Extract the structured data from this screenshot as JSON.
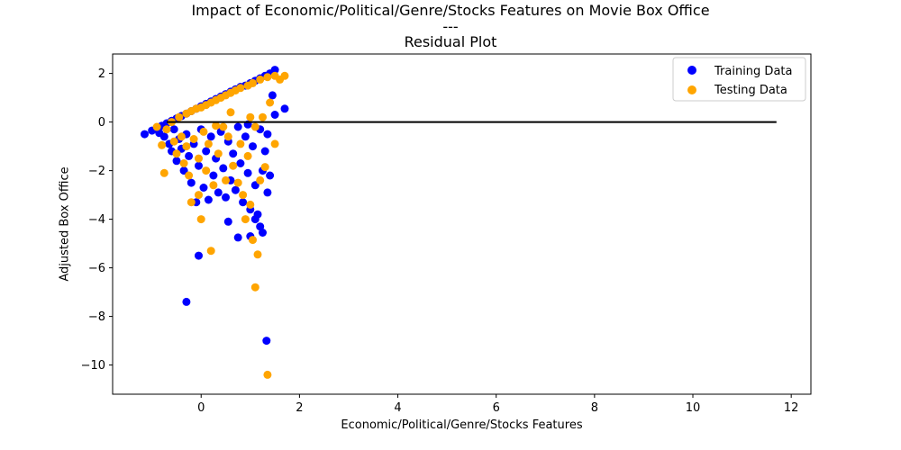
{
  "chart_data": {
    "type": "scatter",
    "title": "Impact of Economic/Political/Genre/Stocks Features on Movie Box Office",
    "title_separator": "---",
    "subtitle": "Residual Plot",
    "xlabel": "Economic/Political/Genre/Stocks Features",
    "ylabel": "Adjusted Box Office",
    "xlim": [
      -1.8,
      12.4
    ],
    "ylim": [
      -11.2,
      2.8
    ],
    "xticks": [
      0,
      2,
      4,
      6,
      8,
      10,
      12
    ],
    "yticks": [
      -10,
      -8,
      -6,
      -4,
      -2,
      0,
      2
    ],
    "xtick_labels": [
      "0",
      "2",
      "4",
      "6",
      "8",
      "10",
      "12"
    ],
    "ytick_labels": [
      "−10",
      "−8",
      "−6",
      "−4",
      "−2",
      "0",
      "2"
    ],
    "grid": false,
    "legend_position": "top-right",
    "hline": {
      "y": 0,
      "xmin": -0.7,
      "xmax": 11.7,
      "color": "#000000"
    },
    "series": [
      {
        "name": "Training Data",
        "color": "#0000ff",
        "points": [
          [
            -1.15,
            -0.5
          ],
          [
            -1.0,
            -0.35
          ],
          [
            -0.9,
            -0.25
          ],
          [
            -0.85,
            -0.45
          ],
          [
            -0.8,
            -0.15
          ],
          [
            -0.75,
            -0.6
          ],
          [
            -0.7,
            -0.05
          ],
          [
            -0.65,
            -0.9
          ],
          [
            -0.6,
            0.05
          ],
          [
            -0.6,
            -1.2
          ],
          [
            -0.55,
            -0.3
          ],
          [
            -0.5,
            0.15
          ],
          [
            -0.5,
            -1.6
          ],
          [
            -0.45,
            -0.7
          ],
          [
            -0.4,
            0.25
          ],
          [
            -0.4,
            -1.1
          ],
          [
            -0.35,
            -2.0
          ],
          [
            -0.3,
            0.35
          ],
          [
            -0.3,
            -0.5
          ],
          [
            -0.25,
            -1.4
          ],
          [
            -0.2,
            0.45
          ],
          [
            -0.2,
            -2.5
          ],
          [
            -0.15,
            -0.9
          ],
          [
            -0.1,
            0.55
          ],
          [
            -0.1,
            -3.3
          ],
          [
            -0.05,
            -1.8
          ],
          [
            0.0,
            0.65
          ],
          [
            0.0,
            -0.3
          ],
          [
            0.05,
            -2.7
          ],
          [
            0.1,
            0.75
          ],
          [
            0.1,
            -1.2
          ],
          [
            0.15,
            -3.2
          ],
          [
            0.2,
            0.85
          ],
          [
            0.2,
            -0.6
          ],
          [
            0.25,
            -2.2
          ],
          [
            0.3,
            0.95
          ],
          [
            0.3,
            -1.5
          ],
          [
            0.35,
            -2.9
          ],
          [
            0.4,
            1.05
          ],
          [
            0.4,
            -0.4
          ],
          [
            0.45,
            -1.9
          ],
          [
            0.5,
            1.15
          ],
          [
            0.5,
            -3.1
          ],
          [
            0.55,
            -0.8
          ],
          [
            0.55,
            -4.1
          ],
          [
            0.6,
            1.25
          ],
          [
            0.6,
            -2.4
          ],
          [
            0.65,
            -1.3
          ],
          [
            0.7,
            1.35
          ],
          [
            0.7,
            -2.8
          ],
          [
            0.75,
            -0.2
          ],
          [
            0.75,
            -4.75
          ],
          [
            0.8,
            1.45
          ],
          [
            0.8,
            -1.7
          ],
          [
            0.85,
            -3.3
          ],
          [
            0.9,
            1.5
          ],
          [
            0.9,
            -0.6
          ],
          [
            0.95,
            -2.1
          ],
          [
            1.0,
            1.6
          ],
          [
            1.0,
            -3.6
          ],
          [
            1.0,
            -4.7
          ],
          [
            1.05,
            -1.0
          ],
          [
            1.1,
            1.7
          ],
          [
            1.1,
            -2.6
          ],
          [
            1.1,
            -4.0
          ],
          [
            1.15,
            -3.8
          ],
          [
            1.2,
            1.8
          ],
          [
            1.2,
            -0.3
          ],
          [
            1.2,
            -4.3
          ],
          [
            1.25,
            -2.0
          ],
          [
            1.25,
            -4.55
          ],
          [
            1.3,
            1.9
          ],
          [
            1.3,
            -1.2
          ],
          [
            1.35,
            -2.9
          ],
          [
            1.35,
            -0.5
          ],
          [
            1.4,
            2.0
          ],
          [
            1.4,
            -2.2
          ],
          [
            1.45,
            1.1
          ],
          [
            1.5,
            2.15
          ],
          [
            1.5,
            0.3
          ],
          [
            1.7,
            0.55
          ],
          [
            -0.3,
            -7.4
          ],
          [
            -0.05,
            -5.5
          ],
          [
            1.33,
            -9.0
          ],
          [
            0.95,
            -0.1
          ]
        ]
      },
      {
        "name": "Testing Data",
        "color": "#ffa500",
        "points": [
          [
            -0.9,
            -0.2
          ],
          [
            -0.8,
            -0.95
          ],
          [
            -0.75,
            -2.1
          ],
          [
            -0.7,
            -0.3
          ],
          [
            -0.6,
            0.0
          ],
          [
            -0.55,
            -0.8
          ],
          [
            -0.5,
            -1.3
          ],
          [
            -0.45,
            0.2
          ],
          [
            -0.4,
            -0.6
          ],
          [
            -0.35,
            -1.7
          ],
          [
            -0.3,
            0.35
          ],
          [
            -0.3,
            -1.0
          ],
          [
            -0.25,
            -2.2
          ],
          [
            -0.2,
            0.45
          ],
          [
            -0.2,
            -3.3
          ],
          [
            -0.15,
            -0.7
          ],
          [
            -0.1,
            0.55
          ],
          [
            -0.05,
            -1.5
          ],
          [
            -0.05,
            -3.0
          ],
          [
            0.0,
            0.6
          ],
          [
            0.0,
            -4.0
          ],
          [
            0.05,
            -0.4
          ],
          [
            0.1,
            0.7
          ],
          [
            0.1,
            -2.0
          ],
          [
            0.15,
            -0.9
          ],
          [
            0.2,
            0.8
          ],
          [
            0.2,
            -5.3
          ],
          [
            0.25,
            -2.6
          ],
          [
            0.3,
            0.9
          ],
          [
            0.35,
            -1.3
          ],
          [
            0.4,
            1.0
          ],
          [
            0.45,
            -0.2
          ],
          [
            0.5,
            1.1
          ],
          [
            0.5,
            -2.4
          ],
          [
            0.55,
            -0.6
          ],
          [
            0.6,
            1.2
          ],
          [
            0.65,
            -1.8
          ],
          [
            0.7,
            1.3
          ],
          [
            0.75,
            -2.5
          ],
          [
            0.8,
            1.4
          ],
          [
            0.8,
            -0.9
          ],
          [
            0.85,
            -3.0
          ],
          [
            0.9,
            -4.0
          ],
          [
            0.95,
            1.5
          ],
          [
            0.95,
            -1.4
          ],
          [
            1.0,
            -3.4
          ],
          [
            1.05,
            1.6
          ],
          [
            1.05,
            -4.85
          ],
          [
            1.1,
            -0.2
          ],
          [
            1.1,
            -6.8
          ],
          [
            1.15,
            -5.45
          ],
          [
            1.2,
            1.75
          ],
          [
            1.2,
            -2.4
          ],
          [
            1.25,
            0.2
          ],
          [
            1.3,
            -1.85
          ],
          [
            1.35,
            1.85
          ],
          [
            1.35,
            -10.4
          ],
          [
            1.4,
            0.8
          ],
          [
            1.5,
            1.9
          ],
          [
            1.5,
            -0.9
          ],
          [
            1.6,
            1.75
          ],
          [
            1.7,
            1.9
          ],
          [
            0.3,
            -0.15
          ],
          [
            0.6,
            0.4
          ],
          [
            1.0,
            0.2
          ]
        ]
      }
    ]
  }
}
